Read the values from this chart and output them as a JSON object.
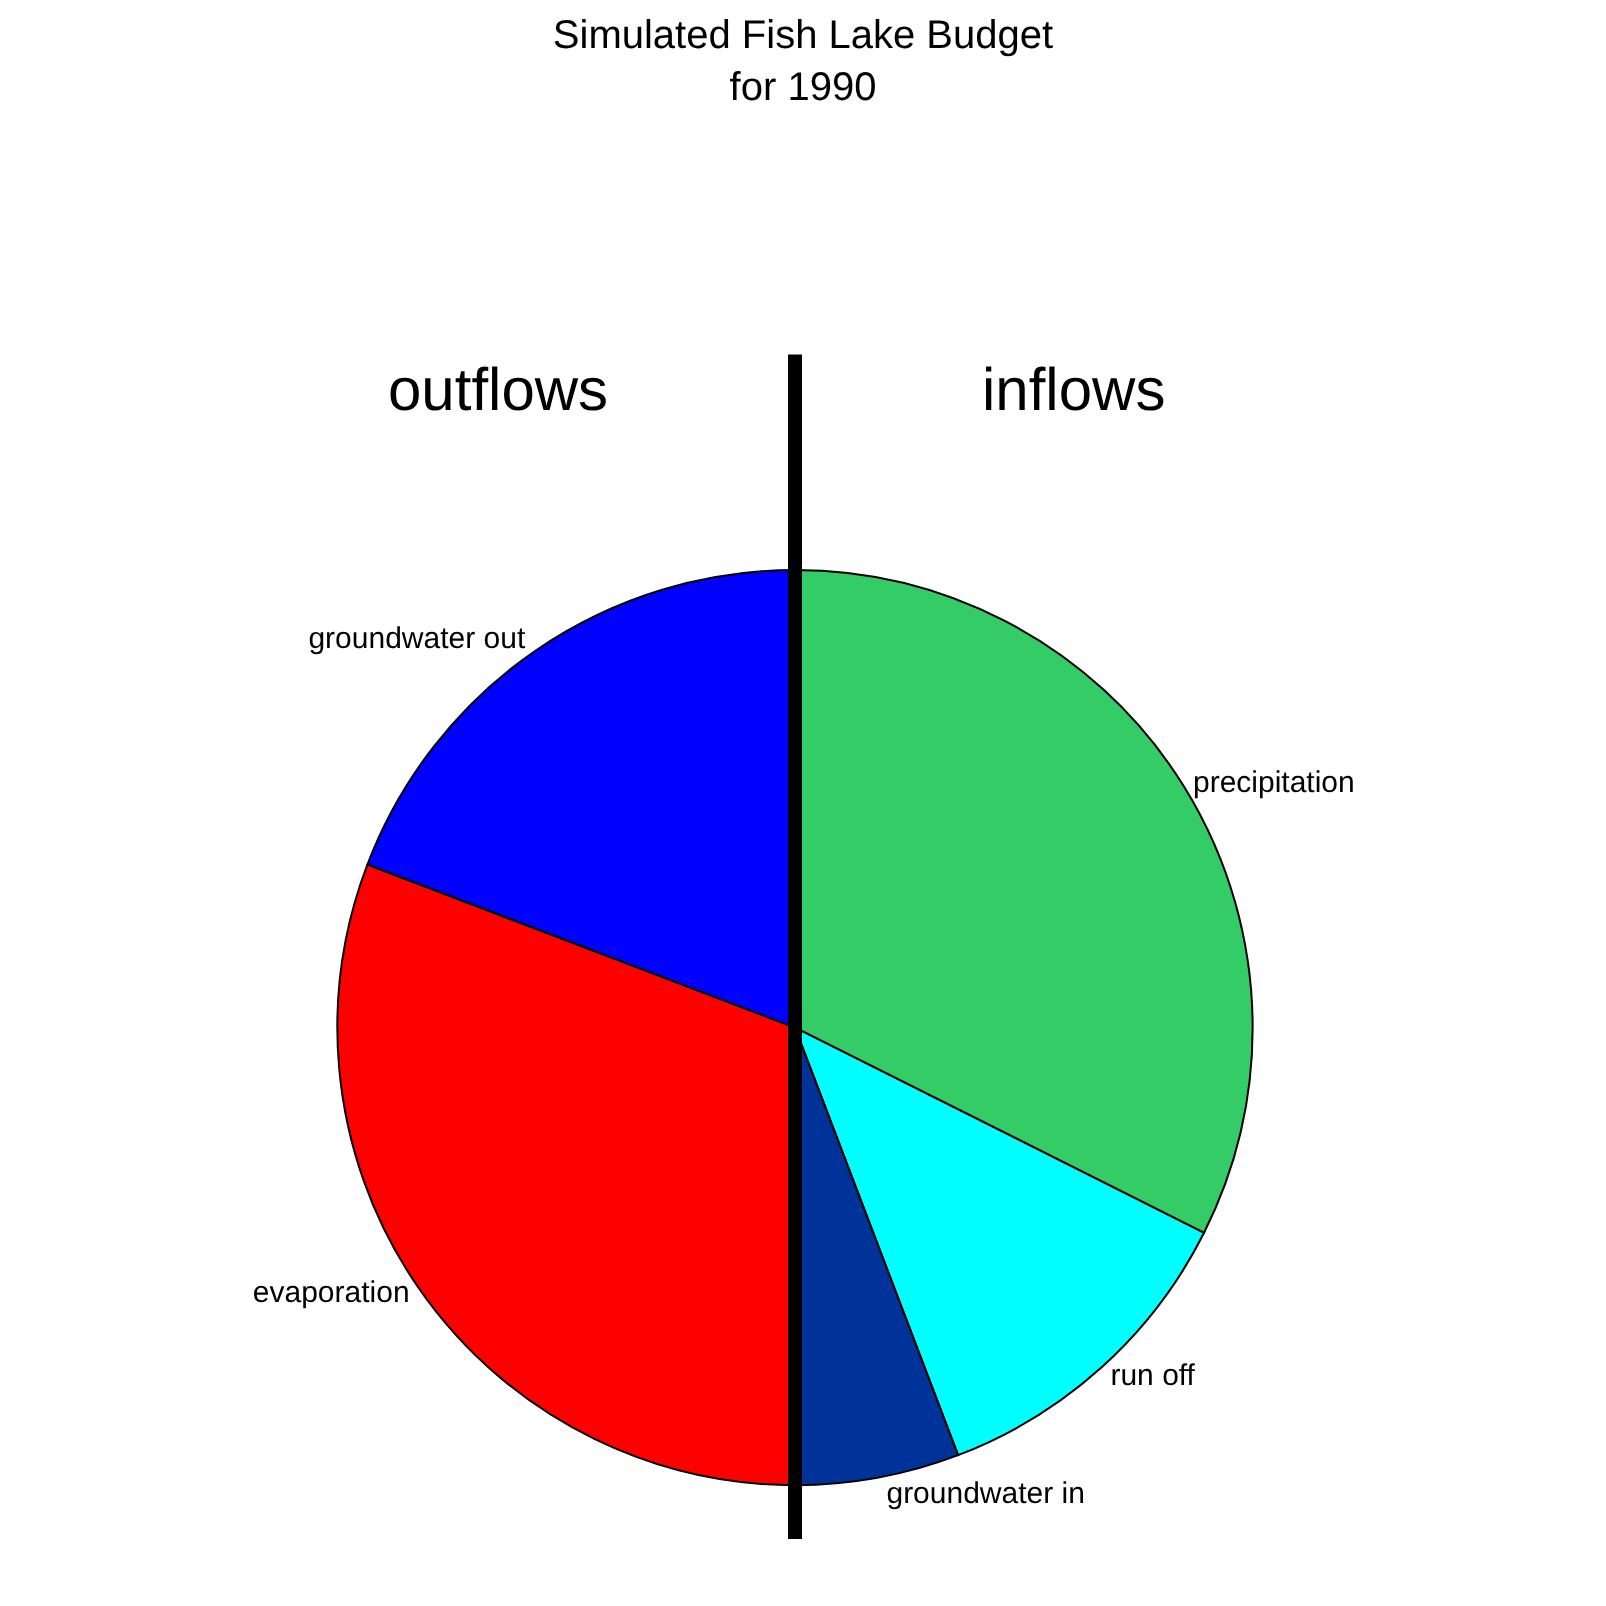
{
  "chart_data": {
    "type": "pie",
    "title": "Simulated Fish Lake Budget\nfor 1990",
    "categories": [
      "precipitation",
      "run off",
      "groundwater in",
      "evaporation",
      "groundwater out"
    ],
    "values": [
      32.4,
      11.8,
      5.8,
      30.8,
      19.2
    ],
    "colors": [
      "#33cc66",
      "#00ffff",
      "#003399",
      "#ff0000",
      "#0000ff"
    ],
    "annotations": [
      "outflows",
      "inflows"
    ],
    "legend": false
  }
}
